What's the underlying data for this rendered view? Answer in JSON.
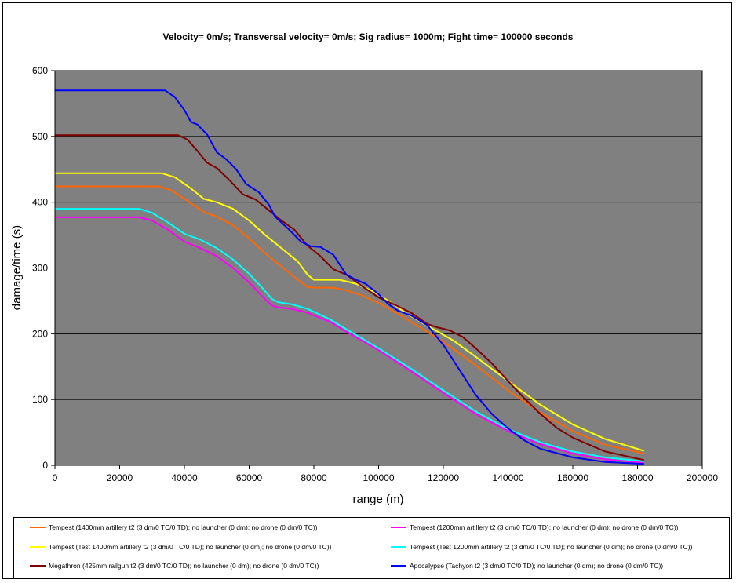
{
  "chart_data": {
    "type": "line",
    "title": "Velocity= 0m/s; Transversal velocity= 0m/s; Sig radius= 1000m; Fight time= 100000 seconds",
    "xlabel": "range (m)",
    "ylabel": "damage/time (s)",
    "xlim": [
      0,
      200000
    ],
    "ylim": [
      0,
      600
    ],
    "xticks": [
      0,
      20000,
      40000,
      60000,
      80000,
      100000,
      120000,
      140000,
      160000,
      180000,
      200000
    ],
    "yticks": [
      0,
      100,
      200,
      300,
      400,
      500,
      600
    ],
    "xtick_labels": [
      "0",
      "20000",
      "40000",
      "60000",
      "80000",
      "100000",
      "120000",
      "140000",
      "160000",
      "180000",
      "200000"
    ],
    "ytick_labels": [
      "0",
      "100",
      "200",
      "300",
      "400",
      "500",
      "600"
    ],
    "grid": "horizontal",
    "plot_background": "#808080",
    "series": [
      {
        "name": "Tempest (1400mm artillery t2 (3 dm/0 TC/0 TD); no launcher (0 dm); no drone (0 dm/0 TC))",
        "color": "#ff6600",
        "points": [
          [
            0,
            424
          ],
          [
            32000,
            424
          ],
          [
            36000,
            418
          ],
          [
            40000,
            405
          ],
          [
            43000,
            395
          ],
          [
            46000,
            385
          ],
          [
            50000,
            378
          ],
          [
            55000,
            365
          ],
          [
            60000,
            345
          ],
          [
            65000,
            322
          ],
          [
            70000,
            302
          ],
          [
            75000,
            282
          ],
          [
            78000,
            271
          ],
          [
            80000,
            270
          ],
          [
            86000,
            270
          ],
          [
            90000,
            266
          ],
          [
            95000,
            258
          ],
          [
            100000,
            247
          ],
          [
            105000,
            233
          ],
          [
            110000,
            218
          ],
          [
            115000,
            203
          ],
          [
            120000,
            188
          ],
          [
            130000,
            152
          ],
          [
            140000,
            114
          ],
          [
            150000,
            80
          ],
          [
            160000,
            52
          ],
          [
            170000,
            31
          ],
          [
            182000,
            18
          ]
        ]
      },
      {
        "name": "Tempest (1200mm artillery t2 (3 dm/0 TC/0 TD); no launcher (0 dm); no drone (0 dm/0 TC))",
        "color": "#ff00ff",
        "points": [
          [
            0,
            377
          ],
          [
            26000,
            377
          ],
          [
            30000,
            372
          ],
          [
            35000,
            358
          ],
          [
            40000,
            340
          ],
          [
            45000,
            330
          ],
          [
            50000,
            318
          ],
          [
            55000,
            300
          ],
          [
            60000,
            278
          ],
          [
            64000,
            257
          ],
          [
            67000,
            243
          ],
          [
            69000,
            240
          ],
          [
            73000,
            238
          ],
          [
            78000,
            232
          ],
          [
            85000,
            218
          ],
          [
            90000,
            203
          ],
          [
            100000,
            175
          ],
          [
            110000,
            143
          ],
          [
            120000,
            110
          ],
          [
            130000,
            78
          ],
          [
            140000,
            52
          ],
          [
            150000,
            32
          ],
          [
            160000,
            18
          ],
          [
            170000,
            9
          ],
          [
            182000,
            4
          ]
        ]
      },
      {
        "name": "Tempest (Test 1400mm artillery t2 (3 dm/0 TC/0 TD); no launcher (0 dm); no drone (0 dm/0 TC))",
        "color": "#ffff00",
        "points": [
          [
            0,
            444
          ],
          [
            33000,
            444
          ],
          [
            37000,
            438
          ],
          [
            42000,
            421
          ],
          [
            46000,
            405
          ],
          [
            50000,
            400
          ],
          [
            55000,
            390
          ],
          [
            60000,
            372
          ],
          [
            65000,
            350
          ],
          [
            70000,
            330
          ],
          [
            75000,
            310
          ],
          [
            78000,
            290
          ],
          [
            80000,
            282
          ],
          [
            88000,
            282
          ],
          [
            93000,
            276
          ],
          [
            98000,
            265
          ],
          [
            103000,
            250
          ],
          [
            108000,
            233
          ],
          [
            113000,
            218
          ],
          [
            118000,
            204
          ],
          [
            123000,
            190
          ],
          [
            130000,
            165
          ],
          [
            140000,
            128
          ],
          [
            150000,
            92
          ],
          [
            160000,
            62
          ],
          [
            170000,
            40
          ],
          [
            182000,
            22
          ]
        ]
      },
      {
        "name": "Tempest (Test 1200mm artillery t2 (3 dm/0 TC/0 TD); no launcher (0 dm); no drone (0 dm/0 TC))",
        "color": "#00ffff",
        "points": [
          [
            0,
            390
          ],
          [
            26000,
            390
          ],
          [
            30000,
            384
          ],
          [
            35000,
            369
          ],
          [
            40000,
            352
          ],
          [
            45000,
            343
          ],
          [
            50000,
            330
          ],
          [
            55000,
            313
          ],
          [
            60000,
            291
          ],
          [
            64000,
            270
          ],
          [
            67000,
            253
          ],
          [
            69000,
            248
          ],
          [
            73000,
            245
          ],
          [
            78000,
            238
          ],
          [
            85000,
            222
          ],
          [
            90000,
            207
          ],
          [
            100000,
            178
          ],
          [
            110000,
            147
          ],
          [
            120000,
            114
          ],
          [
            130000,
            82
          ],
          [
            140000,
            55
          ],
          [
            150000,
            35
          ],
          [
            160000,
            21
          ],
          [
            170000,
            12
          ],
          [
            182000,
            6
          ]
        ]
      },
      {
        "name": "Megathron (425mm railgun t2 (3 dm/0 TC/0 TD); no launcher (0 dm); no drone (0 dm/0 TC))",
        "color": "#800000",
        "points": [
          [
            0,
            502
          ],
          [
            38000,
            502
          ],
          [
            41000,
            495
          ],
          [
            44000,
            478
          ],
          [
            47000,
            460
          ],
          [
            50000,
            452
          ],
          [
            54000,
            433
          ],
          [
            58000,
            412
          ],
          [
            62000,
            404
          ],
          [
            66000,
            388
          ],
          [
            70000,
            372
          ],
          [
            74000,
            358
          ],
          [
            78000,
            334
          ],
          [
            82000,
            318
          ],
          [
            86000,
            298
          ],
          [
            90000,
            290
          ],
          [
            95000,
            272
          ],
          [
            100000,
            255
          ],
          [
            105000,
            244
          ],
          [
            110000,
            232
          ],
          [
            115000,
            215
          ],
          [
            118000,
            210
          ],
          [
            122000,
            205
          ],
          [
            126000,
            195
          ],
          [
            130000,
            178
          ],
          [
            135000,
            155
          ],
          [
            140000,
            128
          ],
          [
            145000,
            102
          ],
          [
            150000,
            78
          ],
          [
            155000,
            57
          ],
          [
            160000,
            42
          ],
          [
            170000,
            21
          ],
          [
            182000,
            8
          ]
        ]
      },
      {
        "name": "Apocalypse (Tachyon t2 (3 dm/0 TC/0 TD); no launcher (0 dm); no drone (0 dm/0 TC))",
        "color": "#0000ff",
        "points": [
          [
            0,
            570
          ],
          [
            34000,
            570
          ],
          [
            37000,
            560
          ],
          [
            40000,
            540
          ],
          [
            42000,
            522
          ],
          [
            44000,
            518
          ],
          [
            47000,
            503
          ],
          [
            50000,
            476
          ],
          [
            53000,
            465
          ],
          [
            56000,
            450
          ],
          [
            59000,
            428
          ],
          [
            63000,
            415
          ],
          [
            66000,
            397
          ],
          [
            68000,
            378
          ],
          [
            72000,
            360
          ],
          [
            76000,
            340
          ],
          [
            79000,
            333
          ],
          [
            82000,
            332
          ],
          [
            86000,
            320
          ],
          [
            90000,
            290
          ],
          [
            93000,
            282
          ],
          [
            96000,
            276
          ],
          [
            100000,
            260
          ],
          [
            103000,
            245
          ],
          [
            106000,
            235
          ],
          [
            110000,
            228
          ],
          [
            115000,
            213
          ],
          [
            120000,
            183
          ],
          [
            125000,
            145
          ],
          [
            130000,
            107
          ],
          [
            135000,
            78
          ],
          [
            140000,
            56
          ],
          [
            145000,
            38
          ],
          [
            150000,
            25
          ],
          [
            160000,
            12
          ],
          [
            170000,
            5
          ],
          [
            182000,
            2
          ]
        ]
      }
    ]
  }
}
